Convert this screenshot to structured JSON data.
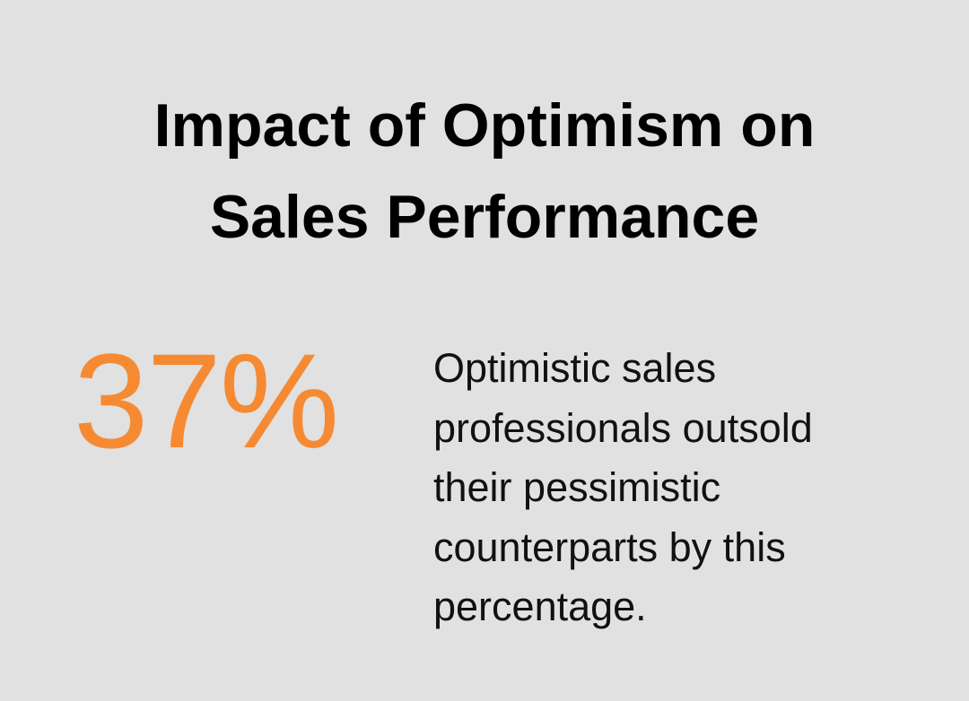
{
  "title": {
    "lines": [
      "Impact of Optimism on",
      "Sales Performance"
    ]
  },
  "stat": "37%",
  "description": {
    "lines": [
      "Optimistic sales",
      "professionals outsold",
      "their pessimistic",
      "counterparts by this",
      "percentage."
    ]
  }
}
